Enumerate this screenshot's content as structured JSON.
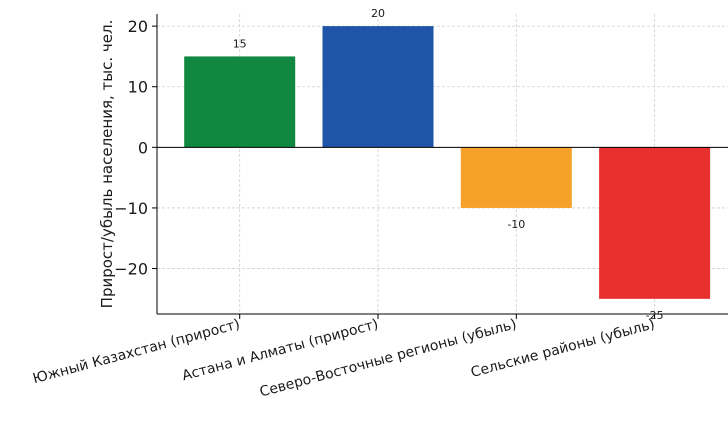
{
  "chart_data": {
    "type": "bar",
    "categories": [
      "Южный Казахстан (прирост)",
      "Астана и Алматы (прирост)",
      "Северо-Восточные регионы (убыль)",
      "Сельские районы (убыль)"
    ],
    "values": [
      15,
      20,
      -10,
      -25
    ],
    "value_labels": [
      "15",
      "20",
      "-10",
      "-25"
    ],
    "colors": [
      "#11883f",
      "#1f55a6",
      "#f6a22a",
      "#e8302f"
    ],
    "title": "",
    "xlabel": "",
    "ylabel": "Прирост/убыль населения, тыс. чел.",
    "ylim": [
      -27.5,
      22.0
    ],
    "yticks": [
      20,
      10,
      0,
      -10,
      -20
    ],
    "ytick_labels": [
      "20",
      "10",
      "0",
      "−10",
      "−20"
    ],
    "grid": true,
    "legend": "none"
  }
}
